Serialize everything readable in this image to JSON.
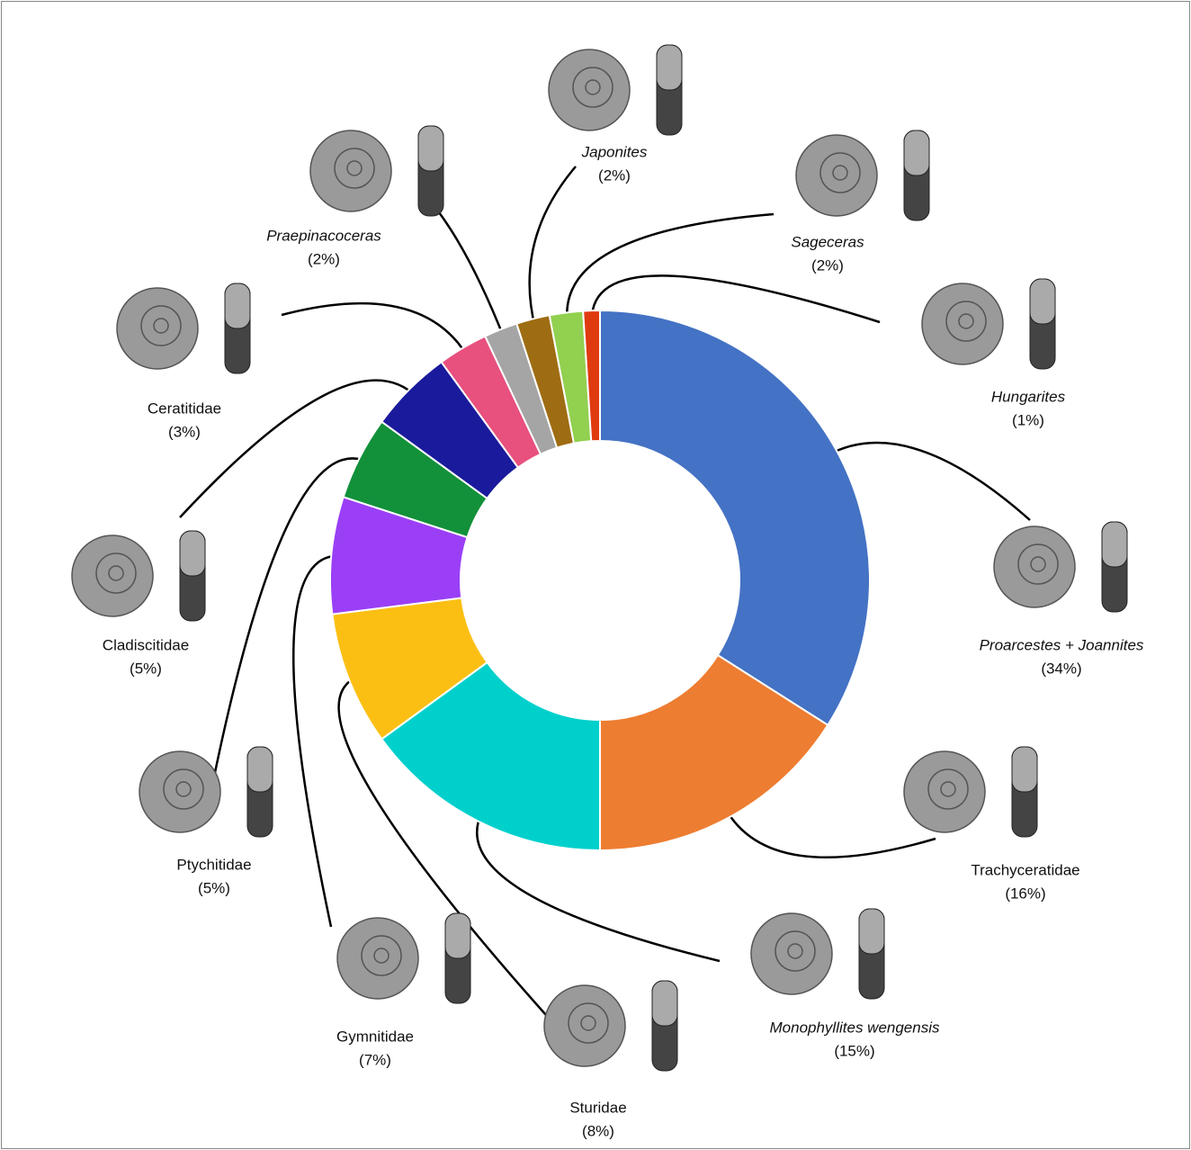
{
  "chart_data": {
    "type": "donut",
    "categories": [
      "Proarcestes + Joannites",
      "Trachyceratidae",
      "Monophyllites wengensis",
      "Sturidae",
      "Gymnitidae",
      "Ptychitidae",
      "Cladiscitidae",
      "Ceratitidae",
      "Praepinacoceras",
      "Japonites",
      "Sageceras",
      "Hungarites"
    ],
    "values": [
      34,
      16,
      15,
      8,
      7,
      5,
      5,
      3,
      2,
      2,
      2,
      1
    ],
    "value_labels": [
      "(34%)",
      "(16%)",
      "(15%)",
      "(8%)",
      "(7%)",
      "(5%)",
      "(5%)",
      "(3%)",
      "(2%)",
      "(2%)",
      "(2%)",
      "(1%)"
    ],
    "colors": [
      "#4472c4",
      "#ed7d31",
      "#00d0cc",
      "#fbbf14",
      "#9a3ff6",
      "#12903a",
      "#1a1a9c",
      "#e8507e",
      "#a5a5a5",
      "#9e6c12",
      "#92d050",
      "#e03a10"
    ],
    "label_styles": [
      "italic",
      "normal",
      "italic",
      "normal",
      "normal",
      "normal",
      "normal",
      "normal",
      "italic",
      "italic",
      "italic",
      "italic"
    ]
  }
}
